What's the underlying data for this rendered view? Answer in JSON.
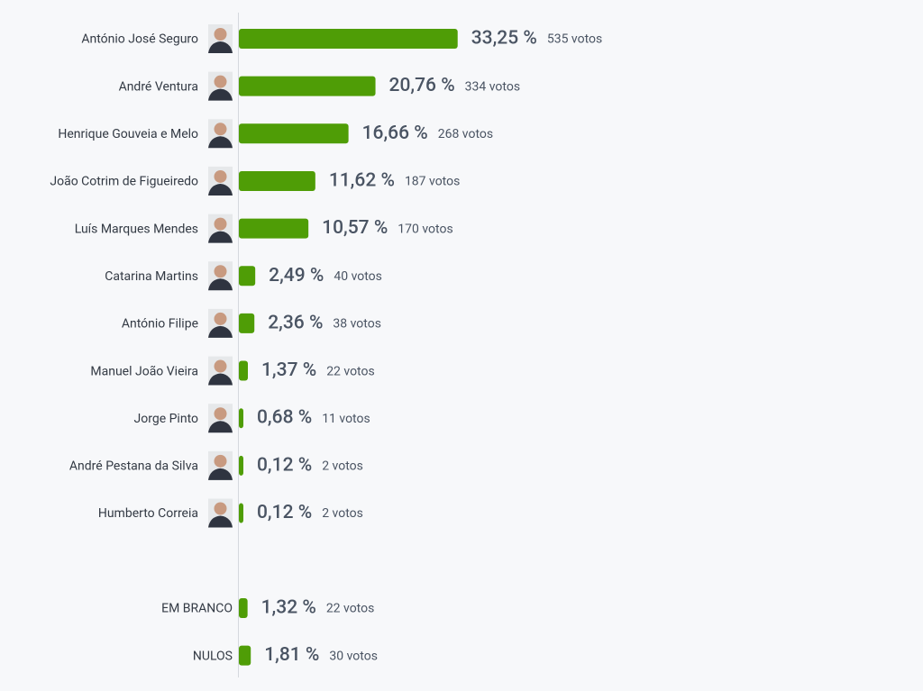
{
  "chart_data": [
    {
      "type": "bar",
      "orientation": "horizontal",
      "color": "#4f9d06",
      "xlim": [
        0,
        100
      ],
      "categories": [
        "António José Seguro",
        "André Ventura",
        "Henrique Gouveia e Melo",
        "João Cotrim de Figueiredo",
        "Luís Marques Mendes",
        "Catarina Martins",
        "António Filipe",
        "Manuel João Vieira",
        "Jorge Pinto",
        "André Pestana da Silva",
        "Humberto Correia"
      ],
      "values": [
        33.25,
        20.76,
        16.66,
        11.62,
        10.57,
        2.49,
        2.36,
        1.37,
        0.68,
        0.12,
        0.12
      ],
      "value_labels": [
        "33,25 %",
        "20,76 %",
        "16,66 %",
        "11,62 %",
        "10,57 %",
        "2,49 %",
        "2,36 %",
        "1,37 %",
        "0,68 %",
        "0,12 %",
        "0,12 %"
      ],
      "vote_labels": [
        "535 votos",
        "334 votos",
        "268 votos",
        "187 votos",
        "170 votos",
        "40 votos",
        "38 votos",
        "22 votos",
        "11 votos",
        "2 votos",
        "2 votos"
      ],
      "photos": true
    },
    {
      "type": "bar",
      "orientation": "horizontal",
      "color": "#4f9d06",
      "xlim": [
        0,
        100
      ],
      "categories": [
        "EM BRANCO",
        "NULOS"
      ],
      "values": [
        1.32,
        1.81
      ],
      "value_labels": [
        "1,32 %",
        "1,81 %"
      ],
      "vote_labels": [
        "22 votos",
        "30 votos"
      ],
      "photos": false
    }
  ]
}
